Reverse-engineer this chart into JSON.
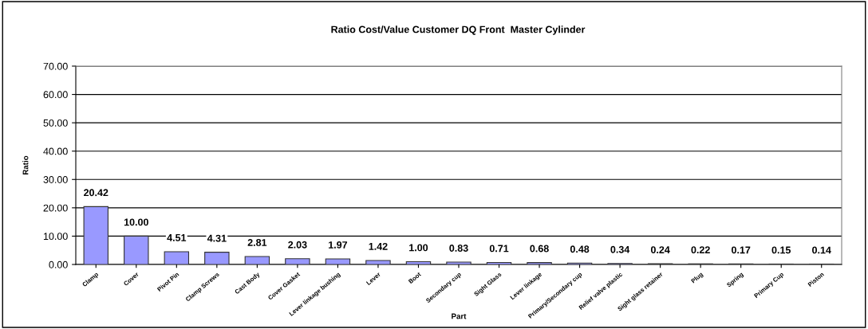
{
  "chart_data": {
    "type": "bar",
    "title": "Ratio Cost/Value Customer DQ Front  Master Cylinder",
    "xlabel": "Part",
    "ylabel": "Ratio",
    "categories": [
      "Clamp",
      "Cover",
      "Pivot Pin",
      "Clamp Screws",
      "Cast Body",
      "Cover Gasket",
      "Lever linkage bushing",
      "Lever",
      "Boot",
      "Secondary cup",
      "Sight Glass",
      "Lever linkage",
      "Primary/Secondary cup",
      "Relief valve plastic",
      "Sight glass retainer",
      "Plug",
      "Spring",
      "Primary Cup",
      "Piston"
    ],
    "values": [
      20.42,
      10.0,
      4.51,
      4.31,
      2.81,
      2.03,
      1.97,
      1.42,
      1.0,
      0.83,
      0.71,
      0.68,
      0.48,
      0.34,
      0.24,
      0.22,
      0.17,
      0.15,
      0.14
    ],
    "value_labels": [
      "20.42",
      "10.00",
      "4.51",
      "4.31",
      "2.81",
      "2.03",
      "1.97",
      "1.42",
      "1.00",
      "0.83",
      "0.71",
      "0.68",
      "0.48",
      "0.34",
      "0.24",
      "0.22",
      "0.17",
      "0.15",
      "0.14"
    ],
    "color": "#9999ff",
    "ylim": [
      0,
      70
    ],
    "yticks": [
      {
        "value": 0,
        "label": "0.00"
      },
      {
        "value": 10,
        "label": "10.00"
      },
      {
        "value": 20,
        "label": "20.00"
      },
      {
        "value": 30,
        "label": "30.00"
      },
      {
        "value": 40,
        "label": "40.00"
      },
      {
        "value": 50,
        "label": "50.00"
      },
      {
        "value": 60,
        "label": "60.00"
      },
      {
        "value": 70,
        "label": "70.00"
      }
    ],
    "grid": "y",
    "legend": false
  }
}
